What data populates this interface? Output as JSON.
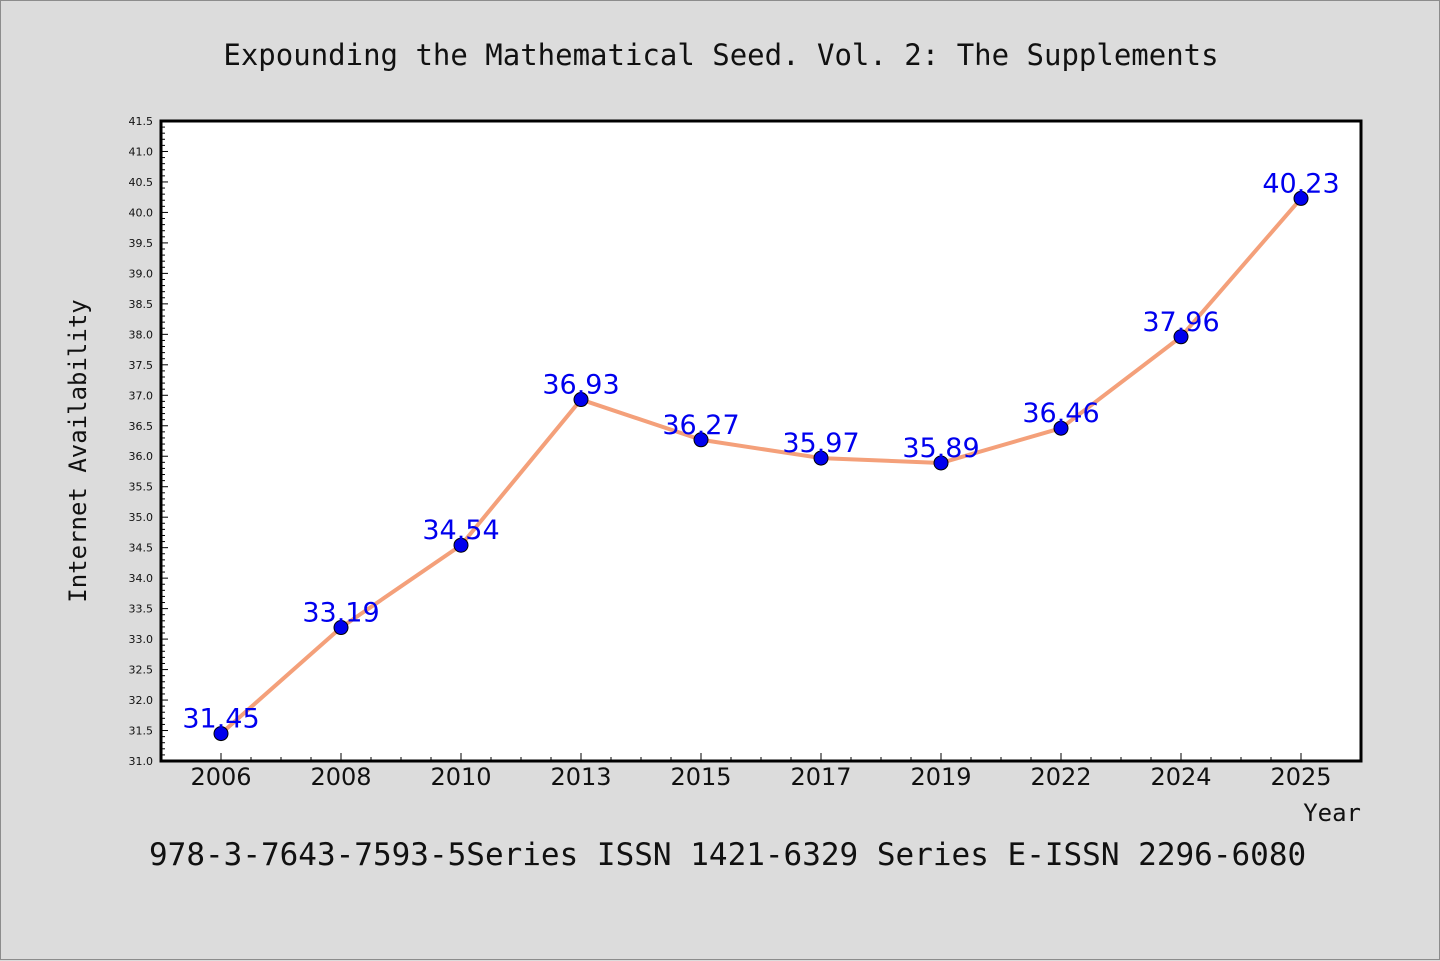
{
  "chart_data": {
    "type": "line",
    "title": "Expounding the Mathematical Seed. Vol. 2: The Supplements",
    "xlabel": "Year",
    "ylabel": "Internet Availability",
    "categories": [
      "2006",
      "2008",
      "2010",
      "2013",
      "2015",
      "2017",
      "2019",
      "2022",
      "2024",
      "2025"
    ],
    "series": [
      {
        "values": [
          31.45,
          33.19,
          34.54,
          36.93,
          36.27,
          35.97,
          35.89,
          36.46,
          37.96,
          40.23
        ]
      }
    ],
    "data_labels": [
      "31.45",
      "33.19",
      "34.54",
      "36.93",
      "36.27",
      "35.97",
      "35.89",
      "36.46",
      "37.96",
      "40.23"
    ],
    "ylim": [
      31.0,
      41.5
    ],
    "y_ticks": [
      "31.0",
      "31.5",
      "32.0",
      "32.5",
      "33.0",
      "33.5",
      "34.0",
      "34.5",
      "35.0",
      "35.5",
      "36.0",
      "36.5",
      "37.0",
      "37.5",
      "38.0",
      "38.5",
      "39.0",
      "39.5",
      "40.0",
      "40.5",
      "41.0",
      "41.5"
    ],
    "grid": false,
    "colors": {
      "line": "#f4a07a",
      "marker": "#0000ee",
      "label": "#0000ee",
      "background": "#dcdcdc",
      "plot_background": "#ffffff"
    }
  },
  "footer": "978-3-7643-7593-5Series ISSN 1421-6329 Series E-ISSN 2296-6080"
}
